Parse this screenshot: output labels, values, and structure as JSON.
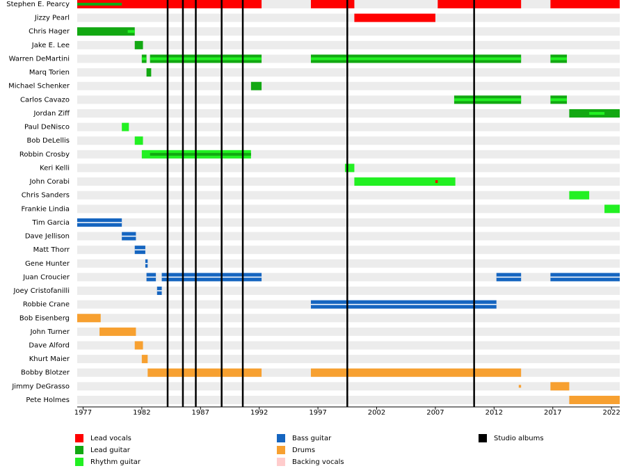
{
  "chart_data": {
    "type": "timeline",
    "roles": [
      {
        "name": "Lead vocals",
        "color": "#ff0000"
      },
      {
        "name": "Lead guitar",
        "color": "#12a812"
      },
      {
        "name": "Rhythm guitar",
        "color": "#22f022"
      },
      {
        "name": "Bass guitar",
        "color": "#1565c0"
      },
      {
        "name": "Drums",
        "color": "#f7a030"
      },
      {
        "name": "Backing vocals",
        "color": "#ffcccc"
      },
      {
        "name": "Studio albums",
        "color": "#000000"
      }
    ],
    "albums": [
      1984.2,
      1985.5,
      1986.6,
      1988.8,
      1990.6,
      1999.5,
      2010.3
    ],
    "xlim": [
      1976.5,
      2022.7
    ],
    "xticks": [
      1977,
      1982,
      1987,
      1992,
      1997,
      2002,
      2007,
      2012,
      2017,
      2022
    ],
    "members": [
      {
        "name": "Stephen E. Pearcy",
        "bars": [
          {
            "role": 0,
            "from": 1976.5,
            "to": 1992.2
          },
          {
            "role": 0,
            "from": 1996.4,
            "to": 2000.1
          },
          {
            "role": 0,
            "from": 2007.2,
            "to": 2014.3
          },
          {
            "role": 0,
            "from": 2016.8,
            "to": 2022.7
          },
          {
            "role": 1,
            "from": 1976.5,
            "to": 1980.3,
            "sub": true
          }
        ]
      },
      {
        "name": "Jizzy Pearl",
        "bars": [
          {
            "role": 0,
            "from": 2000.1,
            "to": 2007.0
          }
        ]
      },
      {
        "name": "Chris Hager",
        "bars": [
          {
            "role": 1,
            "from": 1976.5,
            "to": 1981.4
          },
          {
            "role": 2,
            "from": 1980.8,
            "to": 1981.4,
            "sub": true
          }
        ]
      },
      {
        "name": "Jake E. Lee",
        "bars": [
          {
            "role": 1,
            "from": 1981.4,
            "to": 1982.1
          }
        ]
      },
      {
        "name": "Warren DeMartini",
        "bars": [
          {
            "role": 1,
            "from": 1982.0,
            "to": 1982.4
          },
          {
            "role": 1,
            "from": 1982.7,
            "to": 1992.2
          },
          {
            "role": 1,
            "from": 1996.4,
            "to": 2014.3
          },
          {
            "role": 1,
            "from": 2016.8,
            "to": 2018.2
          },
          {
            "role": 2,
            "from": 1982.0,
            "to": 1982.4,
            "sub": true
          },
          {
            "role": 2,
            "from": 1982.7,
            "to": 1992.2,
            "sub": true
          },
          {
            "role": 2,
            "from": 1996.4,
            "to": 2014.3,
            "sub": true
          },
          {
            "role": 2,
            "from": 2016.8,
            "to": 2018.2,
            "sub": true
          }
        ]
      },
      {
        "name": "Marq Torien",
        "bars": [
          {
            "role": 1,
            "from": 1982.4,
            "to": 1982.8
          }
        ]
      },
      {
        "name": "Michael Schenker",
        "bars": [
          {
            "role": 1,
            "from": 1991.3,
            "to": 1992.2
          }
        ]
      },
      {
        "name": "Carlos Cavazo",
        "bars": [
          {
            "role": 1,
            "from": 2008.6,
            "to": 2014.3
          },
          {
            "role": 1,
            "from": 2016.8,
            "to": 2018.2
          },
          {
            "role": 2,
            "from": 2008.6,
            "to": 2014.3,
            "sub": true
          },
          {
            "role": 2,
            "from": 2016.8,
            "to": 2018.2,
            "sub": true
          }
        ]
      },
      {
        "name": "Jordan Ziff",
        "bars": [
          {
            "role": 1,
            "from": 2018.4,
            "to": 2022.7
          },
          {
            "role": 2,
            "from": 2020.1,
            "to": 2021.4,
            "sub": true
          }
        ]
      },
      {
        "name": "Paul DeNisco",
        "bars": [
          {
            "role": 2,
            "from": 1980.3,
            "to": 1980.9
          }
        ]
      },
      {
        "name": "Bob DeLellis",
        "bars": [
          {
            "role": 2,
            "from": 1981.4,
            "to": 1982.1
          }
        ]
      },
      {
        "name": "Robbin Crosby",
        "bars": [
          {
            "role": 2,
            "from": 1982.0,
            "to": 1991.3
          },
          {
            "role": 1,
            "from": 1982.7,
            "to": 1991.3,
            "sub": true
          }
        ]
      },
      {
        "name": "Keri Kelli",
        "bars": [
          {
            "role": 2,
            "from": 1999.3,
            "to": 2000.1
          }
        ]
      },
      {
        "name": "John Corabi",
        "bars": [
          {
            "role": 2,
            "from": 2000.1,
            "to": 2008.7
          },
          {
            "role": 0,
            "from": 2007.0,
            "to": 2007.2,
            "sub": true
          }
        ]
      },
      {
        "name": "Chris Sanders",
        "bars": [
          {
            "role": 2,
            "from": 2018.4,
            "to": 2020.1
          }
        ]
      },
      {
        "name": "Frankie Lindia",
        "bars": [
          {
            "role": 2,
            "from": 2021.4,
            "to": 2022.7
          }
        ]
      },
      {
        "name": "Tim Garcia",
        "bars": [
          {
            "role": 3,
            "from": 1976.5,
            "to": 1980.3
          }
        ]
      },
      {
        "name": "Dave Jellison",
        "bars": [
          {
            "role": 3,
            "from": 1980.3,
            "to": 1981.5
          }
        ]
      },
      {
        "name": "Matt Thorr",
        "bars": [
          {
            "role": 3,
            "from": 1981.4,
            "to": 1982.3
          }
        ]
      },
      {
        "name": "Gene Hunter",
        "bars": [
          {
            "role": 3,
            "from": 1982.3,
            "to": 1982.5
          }
        ]
      },
      {
        "name": "Juan Croucier",
        "bars": [
          {
            "role": 3,
            "from": 1982.4,
            "to": 1983.2
          },
          {
            "role": 3,
            "from": 1983.7,
            "to": 1992.2
          },
          {
            "role": 3,
            "from": 2012.2,
            "to": 2014.3
          },
          {
            "role": 3,
            "from": 2016.8,
            "to": 2022.7
          }
        ]
      },
      {
        "name": "Joey Cristofanilli",
        "bars": [
          {
            "role": 3,
            "from": 1983.3,
            "to": 1983.7
          }
        ]
      },
      {
        "name": "Robbie Crane",
        "bars": [
          {
            "role": 3,
            "from": 1996.4,
            "to": 2012.2
          }
        ]
      },
      {
        "name": "Bob Eisenberg",
        "bars": [
          {
            "role": 4,
            "from": 1976.5,
            "to": 1978.5
          }
        ]
      },
      {
        "name": "John Turner",
        "bars": [
          {
            "role": 4,
            "from": 1978.4,
            "to": 1981.5
          }
        ]
      },
      {
        "name": "Dave Alford",
        "bars": [
          {
            "role": 4,
            "from": 1981.4,
            "to": 1982.1
          }
        ]
      },
      {
        "name": "Khurt Maier",
        "bars": [
          {
            "role": 4,
            "from": 1982.0,
            "to": 1982.5
          }
        ]
      },
      {
        "name": "Bobby Blotzer",
        "bars": [
          {
            "role": 4,
            "from": 1982.5,
            "to": 1992.2
          },
          {
            "role": 4,
            "from": 1996.4,
            "to": 2014.3
          }
        ]
      },
      {
        "name": "Jimmy DeGrasso",
        "bars": [
          {
            "role": 4,
            "from": 2014.1,
            "to": 2014.3,
            "sub": true
          },
          {
            "role": 4,
            "from": 2016.8,
            "to": 2018.4
          }
        ]
      },
      {
        "name": "Pete Holmes",
        "bars": [
          {
            "role": 4,
            "from": 2018.4,
            "to": 2022.7
          }
        ]
      }
    ]
  }
}
